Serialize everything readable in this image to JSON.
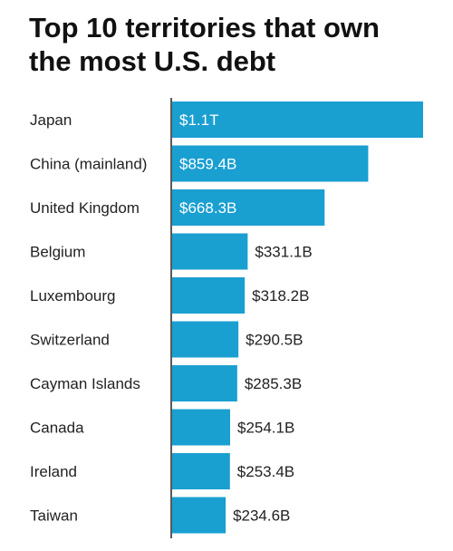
{
  "title": "Top 10 territories that own the most U.S. debt",
  "colors": {
    "bar": "#1a9fd1",
    "text": "#222222",
    "inside_label": "#ffffff"
  },
  "chart_data": {
    "type": "bar",
    "orientation": "horizontal",
    "title": "Top 10 territories that own the most U.S. debt",
    "xlabel": "",
    "ylabel": "",
    "categories": [
      "Japan",
      "China (mainland)",
      "United Kingdom",
      "Belgium",
      "Luxembourg",
      "Switzerland",
      "Cayman Islands",
      "Canada",
      "Ireland",
      "Taiwan"
    ],
    "values": [
      1100,
      859.4,
      668.3,
      331.1,
      318.2,
      290.5,
      285.3,
      254.1,
      253.4,
      234.6
    ],
    "unit": "billions USD",
    "labels": [
      "$1.1T",
      "$859.4B",
      "$668.3B",
      "$331.1B",
      "$318.2B",
      "$290.5B",
      "$285.3B",
      "$254.1B",
      "$253.4B",
      "$234.6B"
    ],
    "xlim": [
      0,
      1100
    ],
    "grid": false,
    "legend": "none"
  }
}
